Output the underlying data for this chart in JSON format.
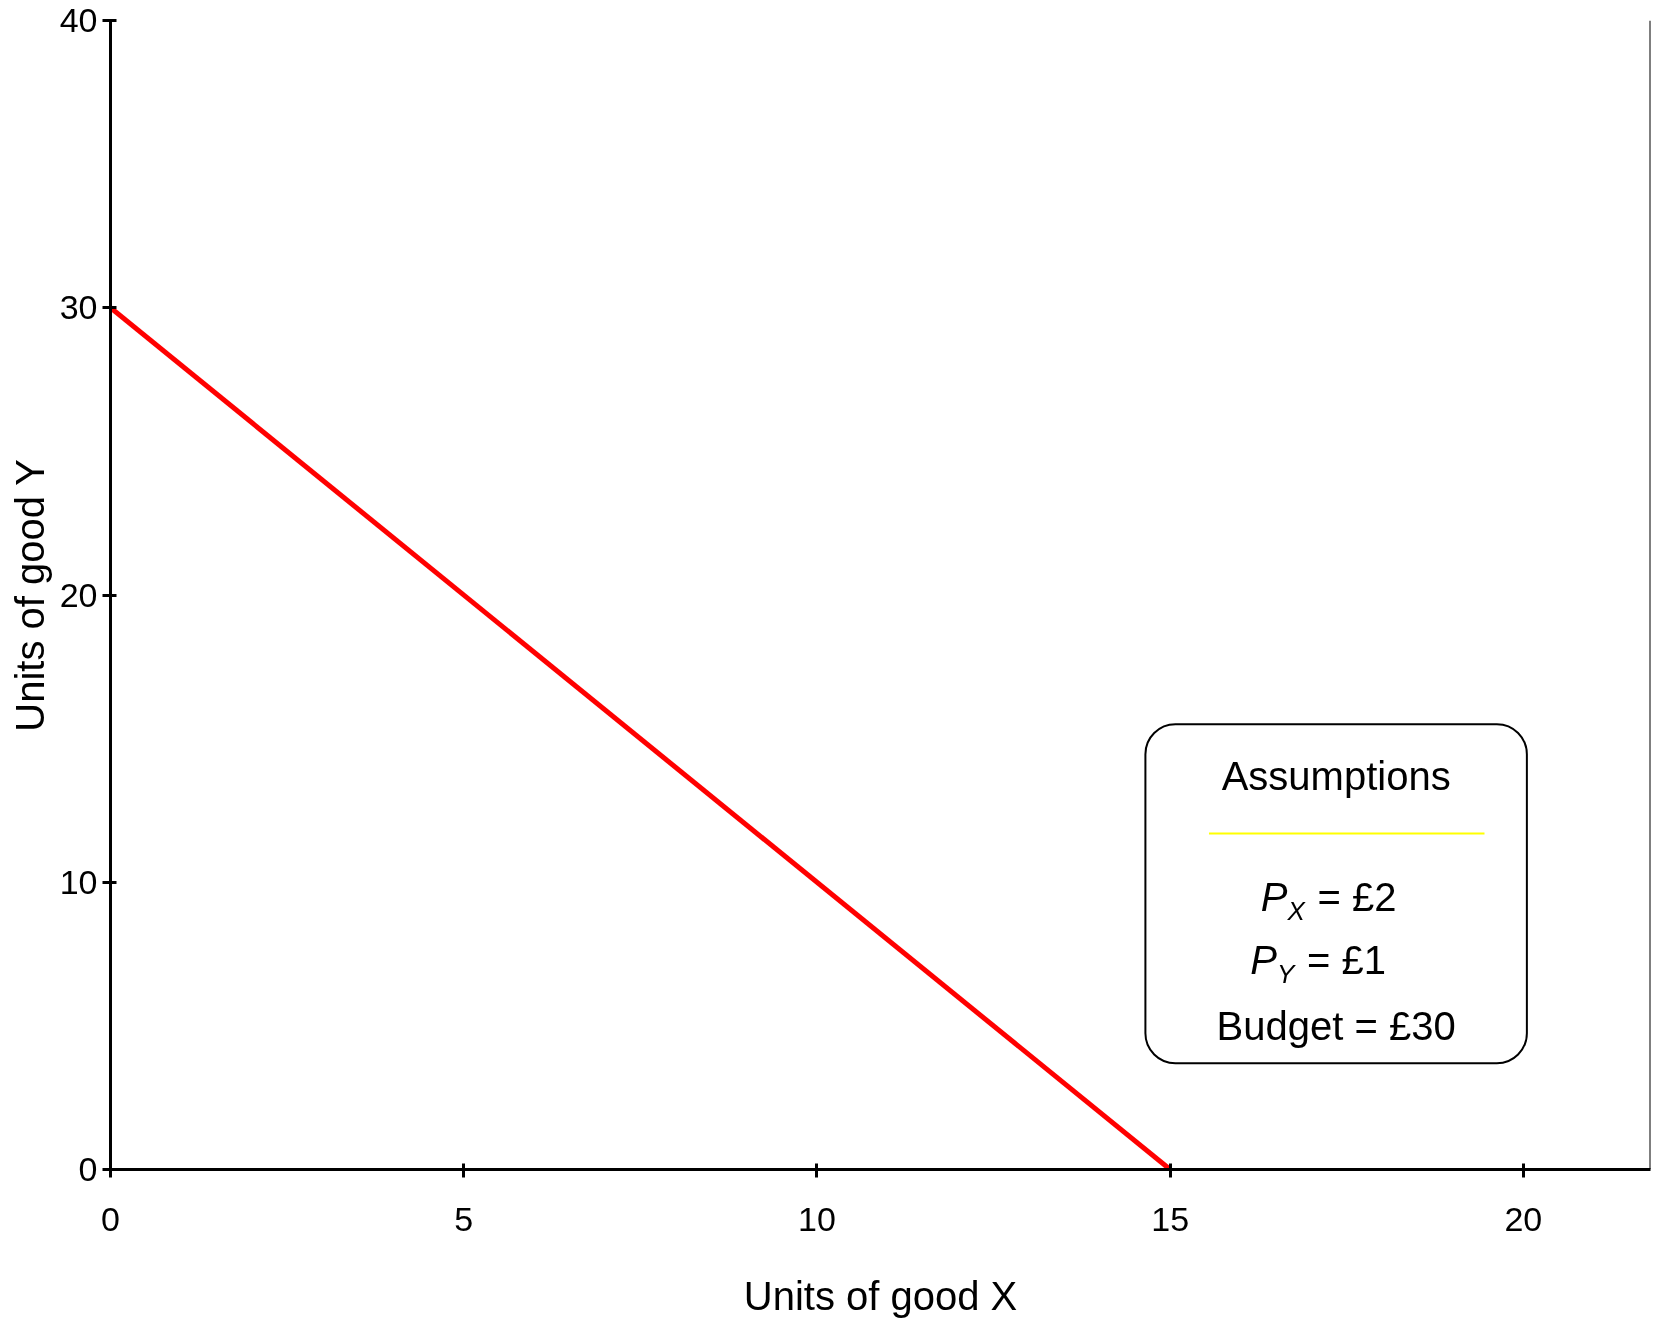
{
  "chart_data": {
    "type": "line",
    "xlabel": "Units of good X",
    "ylabel": "Units of good Y",
    "x": [
      0,
      15
    ],
    "series": [
      {
        "color": "#ff0000",
        "values": [
          30,
          0
        ]
      }
    ],
    "xlim": [
      0,
      21.8
    ],
    "ylim": [
      0,
      40
    ],
    "xticks": [
      0,
      5,
      10,
      15,
      20
    ],
    "yticks": [
      0,
      10,
      20,
      30,
      40
    ],
    "grid": false,
    "marker": "none",
    "line_style": "solid",
    "annotations": [
      "Assumptions",
      "P$_{X}$ = £2",
      "P$_{Y}$ =  £1",
      "Budget = £30"
    ]
  }
}
